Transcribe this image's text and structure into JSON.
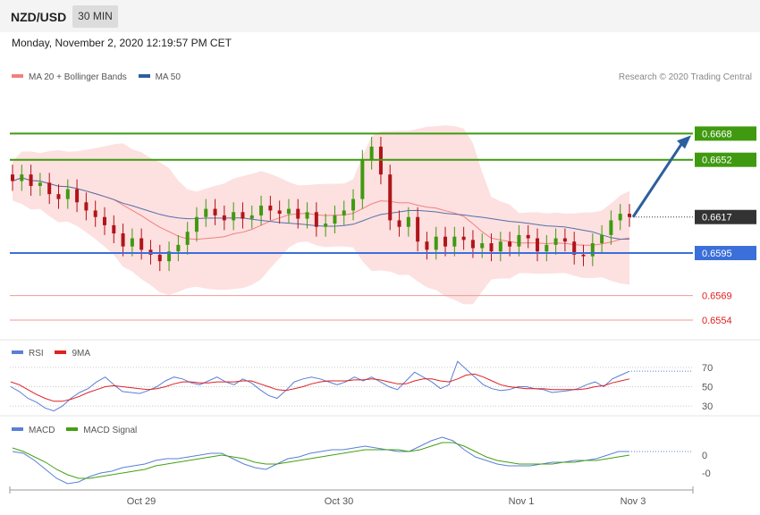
{
  "header": {
    "symbol": "NZD/USD",
    "timeframe": "30 MIN"
  },
  "datetime": "Monday, November 2, 2020 12:19:57 PM CET",
  "legend_main": [
    {
      "label": "MA 20 + Bollinger Bands",
      "color": "#f08080"
    },
    {
      "label": "MA 50",
      "color": "#2e5f9e"
    }
  ],
  "credit": "Research © 2020 Trading Central",
  "legend_rsi": [
    {
      "label": "RSI",
      "color": "#5a7fd6"
    },
    {
      "label": "9MA",
      "color": "#e02020"
    }
  ],
  "legend_macd": [
    {
      "label": "MACD",
      "color": "#5a7fd6"
    },
    {
      "label": "MACD Signal",
      "color": "#44a012"
    }
  ],
  "colors": {
    "up": "#3f9a10",
    "down": "#b0141a",
    "band": "#fde0e0",
    "resistance": "#3f9a10",
    "support": "#3b6fd9",
    "target": "#e02020",
    "current": "#333333",
    "arrow": "#2d5f9e"
  },
  "chart_data": [
    {
      "type": "candlestick",
      "title": "NZD/USD 30 MIN",
      "ylim": [
        0.6542,
        0.6695
      ],
      "x_ticks": [
        "Oct 29",
        "Oct 30",
        "Nov 1",
        "Nov 3"
      ],
      "levels": [
        {
          "value": 0.6668,
          "label": "0.6668",
          "kind": "resistance"
        },
        {
          "value": 0.6652,
          "label": "0.6652",
          "kind": "resistance"
        },
        {
          "value": 0.6617,
          "label": "0.6617",
          "kind": "current"
        },
        {
          "value": 0.6595,
          "label": "0.6595",
          "kind": "support"
        },
        {
          "value": 0.6569,
          "label": "0.6569",
          "kind": "target"
        },
        {
          "value": 0.6554,
          "label": "0.6554",
          "kind": "target"
        }
      ],
      "close": [
        0.6639,
        0.6643,
        0.6636,
        0.6638,
        0.6631,
        0.6628,
        0.6634,
        0.6626,
        0.6621,
        0.6617,
        0.6612,
        0.6607,
        0.6599,
        0.6604,
        0.6597,
        0.6594,
        0.659,
        0.6596,
        0.66,
        0.6608,
        0.6617,
        0.6622,
        0.6618,
        0.6615,
        0.662,
        0.6616,
        0.6618,
        0.6624,
        0.6621,
        0.6619,
        0.6622,
        0.6616,
        0.662,
        0.6611,
        0.6613,
        0.6618,
        0.6621,
        0.6628,
        0.6652,
        0.666,
        0.6643,
        0.6615,
        0.6611,
        0.6617,
        0.6602,
        0.6597,
        0.6605,
        0.6599,
        0.6605,
        0.6603,
        0.6598,
        0.6601,
        0.6596,
        0.6602,
        0.6599,
        0.6606,
        0.6604,
        0.6596,
        0.66,
        0.6604,
        0.6602,
        0.6594,
        0.6593,
        0.6601,
        0.6606,
        0.6615,
        0.6619,
        0.6617
      ]
    },
    {
      "type": "line",
      "title": "RSI",
      "ylim": [
        20,
        80
      ],
      "y_ticks": [
        70,
        50,
        30
      ],
      "series": [
        {
          "name": "RSI",
          "values": [
            50,
            45,
            38,
            34,
            28,
            25,
            30,
            38,
            44,
            48,
            55,
            60,
            52,
            45,
            44,
            43,
            46,
            50,
            56,
            60,
            58,
            54,
            52,
            56,
            60,
            55,
            52,
            58,
            54,
            47,
            41,
            38,
            46,
            55,
            58,
            60,
            58,
            55,
            52,
            55,
            60,
            56,
            60,
            55,
            50,
            47,
            56,
            65,
            60,
            55,
            48,
            52,
            76,
            68,
            60,
            52,
            48,
            46,
            47,
            50,
            50,
            48,
            47,
            44,
            45,
            46,
            48,
            52,
            55,
            50,
            58,
            62,
            66
          ]
        },
        {
          "name": "9MA",
          "values": [
            55,
            52,
            47,
            42,
            38,
            35,
            35,
            37,
            40,
            44,
            47,
            50,
            51,
            50,
            49,
            48,
            47,
            48,
            50,
            53,
            55,
            55,
            54,
            54,
            55,
            55,
            55,
            56,
            56,
            53,
            50,
            47,
            46,
            48,
            50,
            53,
            55,
            56,
            56,
            56,
            57,
            57,
            58,
            57,
            55,
            53,
            53,
            56,
            58,
            58,
            56,
            55,
            58,
            62,
            63,
            60,
            56,
            52,
            50,
            49,
            48,
            48,
            48,
            47,
            47,
            47,
            47,
            48,
            50,
            51,
            54,
            56,
            58
          ]
        }
      ]
    },
    {
      "type": "line",
      "title": "MACD",
      "y_ticks": [
        0,
        -0.001
      ],
      "series": [
        {
          "name": "MACD",
          "values": [
            0.0002,
            0.0001,
            -0.0003,
            -0.0008,
            -0.0013,
            -0.0016,
            -0.0015,
            -0.0012,
            -0.001,
            -0.0009,
            -0.0007,
            -0.0006,
            -0.0005,
            -0.0003,
            -0.0002,
            -0.0002,
            -0.0001,
            0.0,
            0.0001,
            0.0001,
            -0.0002,
            -0.0005,
            -0.0007,
            -0.0008,
            -0.0005,
            -0.0002,
            -0.0001,
            0.0001,
            0.0002,
            0.0003,
            0.0003,
            0.0004,
            0.0005,
            0.0004,
            0.0003,
            0.0002,
            0.0002,
            0.0005,
            0.0008,
            0.001,
            0.0008,
            0.0003,
            -0.0001,
            -0.0003,
            -0.0005,
            -0.0006,
            -0.0006,
            -0.0006,
            -0.0005,
            -0.0004,
            -0.0004,
            -0.0003,
            -0.0003,
            -0.0002,
            0.0,
            0.0002,
            0.0002
          ]
        },
        {
          "name": "MACD Signal",
          "values": [
            0.0004,
            0.0002,
            -0.0001,
            -0.0004,
            -0.0008,
            -0.0011,
            -0.0013,
            -0.0013,
            -0.0012,
            -0.0011,
            -0.001,
            -0.0009,
            -0.0008,
            -0.0006,
            -0.0005,
            -0.0004,
            -0.0003,
            -0.0002,
            -0.0001,
            0.0,
            -0.0001,
            -0.0002,
            -0.0004,
            -0.0005,
            -0.0005,
            -0.0004,
            -0.0003,
            -0.0002,
            -0.0001,
            0.0,
            0.0001,
            0.0002,
            0.0003,
            0.0003,
            0.0003,
            0.0003,
            0.0002,
            0.0003,
            0.0005,
            0.0007,
            0.0007,
            0.0005,
            0.0002,
            -0.0001,
            -0.0003,
            -0.0004,
            -0.0005,
            -0.0005,
            -0.0005,
            -0.0005,
            -0.0004,
            -0.0004,
            -0.0003,
            -0.0003,
            -0.0002,
            -0.0001,
            0.0
          ]
        }
      ]
    }
  ]
}
